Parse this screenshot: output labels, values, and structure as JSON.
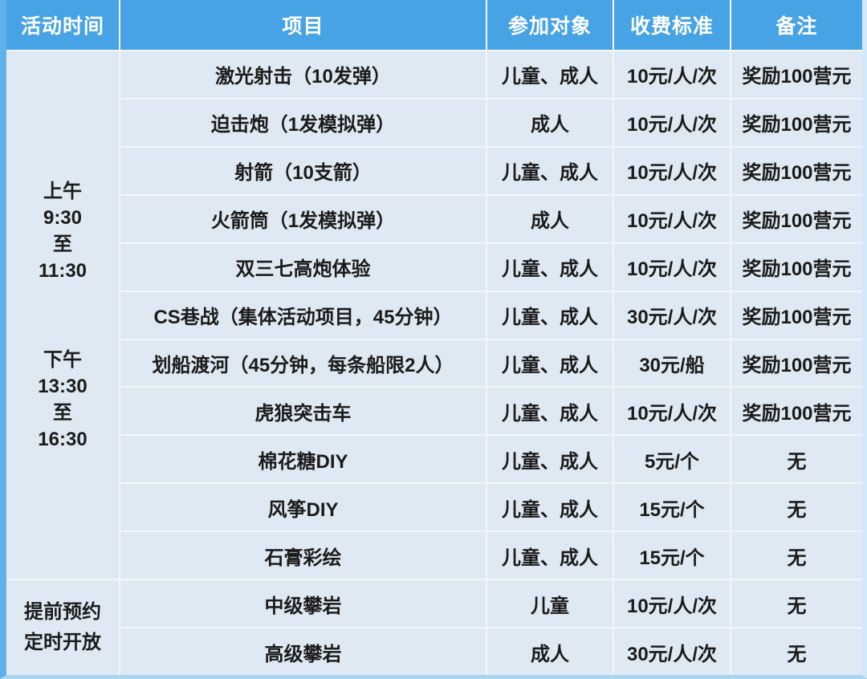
{
  "table": {
    "headers": [
      "活动时间",
      "项目",
      "参加对象",
      "收费标准",
      "备注"
    ],
    "time_column": {
      "day_session": {
        "morning": [
          "上午",
          "9:30",
          "至",
          "11:30"
        ],
        "afternoon": [
          "下午",
          "13:30",
          "至",
          "16:30"
        ]
      },
      "booking": [
        "提前预约",
        "定时开放"
      ]
    },
    "rows": [
      {
        "project": "激光射击（10发弹）",
        "participants": "儿童、成人",
        "fee": "10元/人/次",
        "remark": "奖励100营元"
      },
      {
        "project": "迫击炮（1发模拟弹）",
        "participants": "成人",
        "fee": "10元/人/次",
        "remark": "奖励100营元"
      },
      {
        "project": "射箭（10支箭）",
        "participants": "儿童、成人",
        "fee": "10元/人/次",
        "remark": "奖励100营元"
      },
      {
        "project": "火箭筒（1发模拟弹）",
        "participants": "成人",
        "fee": "10元/人/次",
        "remark": "奖励100营元"
      },
      {
        "project": "双三七高炮体验",
        "participants": "儿童、成人",
        "fee": "10元/人/次",
        "remark": "奖励100营元"
      },
      {
        "project": "CS巷战（集体活动项目，45分钟）",
        "participants": "儿童、成人",
        "fee": "30元/人/次",
        "remark": "奖励100营元"
      },
      {
        "project": "划船渡河（45分钟，每条船限2人）",
        "participants": "儿童、成人",
        "fee": "30元/船",
        "remark": "奖励100营元"
      },
      {
        "project": "虎狼突击车",
        "participants": "儿童、成人",
        "fee": "10元/人/次",
        "remark": "奖励100营元"
      },
      {
        "project": "棉花糖DIY",
        "participants": "儿童、成人",
        "fee": "5元/个",
        "remark": "无"
      },
      {
        "project": "风筝DIY",
        "participants": "儿童、成人",
        "fee": "15元/个",
        "remark": "无"
      },
      {
        "project": "石膏彩绘",
        "participants": "儿童、成人",
        "fee": "15元/个",
        "remark": "无"
      },
      {
        "project": "中级攀岩",
        "participants": "儿童",
        "fee": "10元/人/次",
        "remark": "无"
      },
      {
        "project": "高级攀岩",
        "participants": "成人",
        "fee": "30元/人/次",
        "remark": "无"
      }
    ]
  },
  "colors": {
    "header_bg": "#47A3E4",
    "cell_bg": "#DFE9F3",
    "grid_gap": "#F2F7FB",
    "left_border": "#5FB1EA",
    "right_border": "#D2E8F9",
    "bottom_border": "#A9D5F0",
    "header_text": "#FFFFFF",
    "body_text": "#1B1B1B"
  }
}
